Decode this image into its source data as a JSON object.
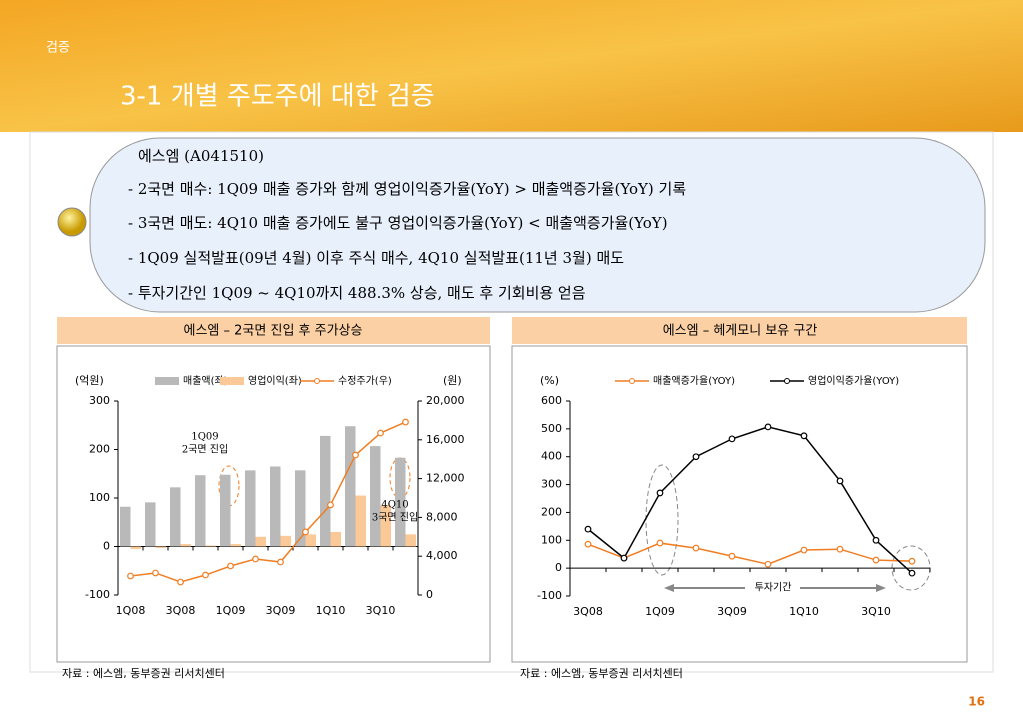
{
  "section": "검증",
  "heading": "3-1 개별 주도주에 대한 검증",
  "summary": {
    "title": "에스엠 (A041510)",
    "lines": [
      "- 2국면 매수: 1Q09 매출 증가와 함께 영업이익증가율(YoY) > 매출액증가율(YoY) 기록",
      "- 3국면 매도: 4Q10 매출 증가에도 불구 영업이익증가율(YoY) < 매출액증가율(YoY)",
      "- 1Q09 실적발표(09년 4월) 이후 주식 매수, 4Q10 실적발표(11년 3월) 매도",
      "- 투자기간인 1Q09 ~ 4Q10까지 488.3% 상승, 매도 후 기회비용 얻음"
    ]
  },
  "page_number": "16",
  "chart_data": [
    {
      "type": "combo",
      "title": "에스엠 – 2국면 진입 후 주가상승",
      "source": "자료 : 에스엠, 동부증권 리서치센터",
      "y_unit": "(억원)",
      "y2_unit": "(원)",
      "categories": [
        "1Q08",
        null,
        "3Q08",
        null,
        "1Q09",
        null,
        "3Q09",
        null,
        "1Q10",
        null,
        "3Q10",
        null
      ],
      "series": [
        {
          "name": "매출액(좌)",
          "type": "bar",
          "color": "#b9b9b9",
          "values": [
            82,
            91,
            122,
            147,
            148,
            157,
            165,
            157,
            228,
            248,
            207,
            183
          ]
        },
        {
          "name": "영업이익(좌)",
          "type": "bar",
          "color": "#fbc897",
          "values": [
            -5,
            -3,
            5,
            2,
            5,
            20,
            22,
            25,
            30,
            105,
            85,
            25
          ]
        },
        {
          "name": "수정주가(우)",
          "type": "line",
          "axis": "y2",
          "color": "#f07d22",
          "values": [
            1960,
            2270,
            1340,
            2060,
            2990,
            3710,
            3400,
            6500,
            9280,
            14430,
            16700,
            17830
          ]
        }
      ],
      "ylim": [
        -100,
        300
      ],
      "yticks": [
        -100,
        0,
        100,
        200,
        300
      ],
      "y2lim": [
        0,
        20000
      ],
      "y2ticks": [
        0,
        {
          "value": 4000,
          "label": "4,000"
        },
        {
          "value": 8000,
          "label": "8,000"
        },
        {
          "value": 12000,
          "label": "12,000"
        },
        {
          "value": 16000,
          "label": "16,000"
        },
        {
          "value": 20000,
          "label": "20,000"
        }
      ],
      "annotations": [
        {
          "lines": [
            "1Q09",
            "2국면 진입"
          ]
        },
        {
          "lines": [
            "4Q10",
            "3국면 진입"
          ]
        }
      ]
    },
    {
      "type": "line",
      "title": "에스엠 – 헤게모니 보유 구간",
      "source": "자료 : 에스엠, 동부증권 리서치센터",
      "y_unit": "(%)",
      "categories": [
        "3Q08",
        null,
        "1Q09",
        null,
        "3Q09",
        null,
        "1Q10",
        null,
        "3Q10",
        null
      ],
      "series": [
        {
          "name": "매출액증가율(YOY)",
          "type": "line",
          "color": "#f07d22",
          "values": [
            86,
            36,
            90,
            72,
            43,
            14,
            65,
            68,
            29,
            25
          ]
        },
        {
          "name": "영업이익증가율(YOY)",
          "type": "line",
          "color": "#000000",
          "values": [
            140,
            36,
            270,
            400,
            464,
            507,
            475,
            313,
            100,
            -18
          ]
        }
      ],
      "ylim": [
        -100,
        600
      ],
      "yticks": [
        -100,
        0,
        100,
        200,
        300,
        400,
        500,
        600
      ],
      "annotations": [
        {
          "lines": [
            "투자기간"
          ]
        }
      ]
    }
  ]
}
